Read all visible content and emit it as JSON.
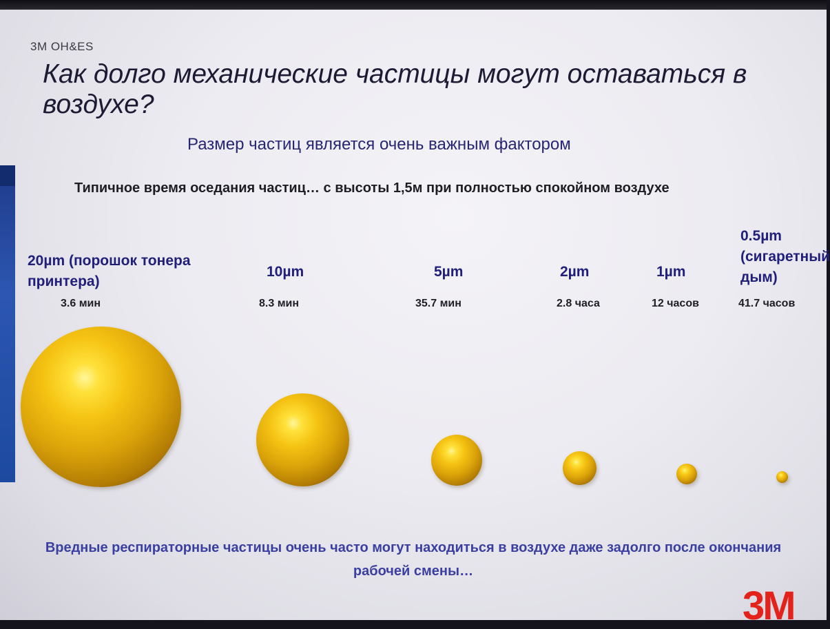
{
  "header": {
    "brand": "3M  OH&ES",
    "title": "Как долго механические частицы могут оставаться в воздухе?"
  },
  "subtitle": "Размер частиц является очень важным фактором",
  "settle_heading": "Типичное время оседания частиц… с высоты 1,5м при полностью спокойном воздухе",
  "particles": [
    {
      "size_label": "20µm (порошок тонера принтера)",
      "time": "3.6 мин"
    },
    {
      "size_label": "10µm",
      "time": "8.3 мин"
    },
    {
      "size_label": "5µm",
      "time": "35.7 мин"
    },
    {
      "size_label": "2µm",
      "time": "2.8 часа"
    },
    {
      "size_label": "1µm",
      "time": "12 часов"
    },
    {
      "size_label": "0.5µm (сигаретный дым)",
      "time": "41.7 часов"
    }
  ],
  "footer_note": "Вредные респираторные частицы очень часто могут находиться в воздухе даже задолго после окончания рабочей смены…",
  "logo": "3M",
  "colors": {
    "sphere": "#f5c313",
    "accent_text": "#20207a",
    "logo": "#e3231b",
    "side_bar": "#2c56b0"
  }
}
